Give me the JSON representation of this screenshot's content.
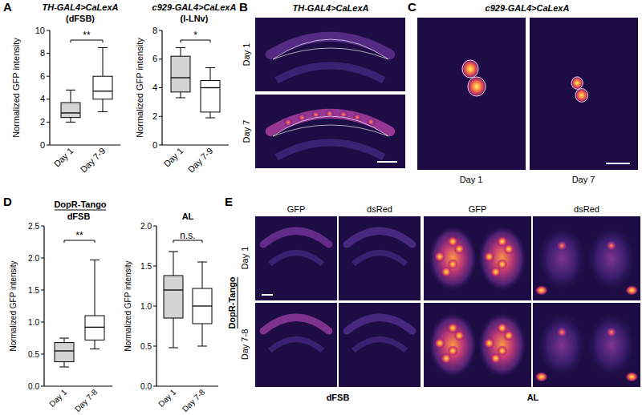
{
  "panel_labels": [
    "A",
    "B",
    "C",
    "D",
    "E"
  ],
  "chart_data": [
    {
      "type": "box",
      "title": "TH-GAL4>CaLexA",
      "subtitle": "(dFSB)",
      "y_label": "Normalized GFP intensity",
      "categories": [
        "Day 1",
        "Day 7-9"
      ],
      "boxes": [
        {
          "whisker_low": 2.0,
          "q1": 2.4,
          "median": 2.8,
          "q3": 3.7,
          "whisker_high": 4.8
        },
        {
          "whisker_low": 2.9,
          "q1": 4.0,
          "median": 4.7,
          "q3": 6.0,
          "whisker_high": 8.5
        }
      ],
      "colors": [
        "#d3d3d3",
        "#ffffff"
      ],
      "ylim": [
        0,
        10
      ],
      "yticks": [
        0,
        2,
        4,
        6,
        8,
        10
      ],
      "significance": "**"
    },
    {
      "type": "box",
      "title": "c929-GAL4>CaLexA",
      "subtitle": "(l-LNv)",
      "y_label": "Normalized GFP intensity",
      "categories": [
        "Day 1",
        "Day 7-9"
      ],
      "boxes": [
        {
          "whisker_low": 3.3,
          "q1": 3.7,
          "median": 4.7,
          "q3": 6.2,
          "whisker_high": 6.8
        },
        {
          "whisker_low": 1.9,
          "q1": 2.3,
          "median": 4.0,
          "q3": 4.5,
          "whisker_high": 5.4
        }
      ],
      "colors": [
        "#d3d3d3",
        "#ffffff"
      ],
      "ylim": [
        0,
        8
      ],
      "yticks": [
        0,
        2,
        4,
        6,
        8
      ],
      "significance": "*"
    },
    {
      "type": "box",
      "title": "dFSB",
      "y_label": "Normalized GFP intensity",
      "categories": [
        "Day 1",
        "Day 7-8"
      ],
      "boxes": [
        {
          "whisker_low": 0.3,
          "q1": 0.38,
          "median": 0.55,
          "q3": 0.68,
          "whisker_high": 0.75
        },
        {
          "whisker_low": 0.58,
          "q1": 0.72,
          "median": 0.92,
          "q3": 1.1,
          "whisker_high": 1.97
        }
      ],
      "colors": [
        "#d3d3d3",
        "#ffffff"
      ],
      "ylim": [
        0,
        2.5
      ],
      "yticks": [
        {
          "value": 0,
          "label": "0.0"
        },
        {
          "value": 0.5,
          "label": "0.5"
        },
        {
          "value": 1,
          "label": "1.0"
        },
        {
          "value": 1.5,
          "label": "1.5"
        },
        {
          "value": 2,
          "label": "2.0"
        },
        {
          "value": 2.5,
          "label": "2.5"
        }
      ],
      "significance": "**"
    },
    {
      "type": "box",
      "title": "AL",
      "y_label": "Normalized GFP intensity",
      "categories": [
        "Day 1",
        "Day 7-8"
      ],
      "boxes": [
        {
          "whisker_low": 0.48,
          "q1": 0.85,
          "median": 1.2,
          "q3": 1.38,
          "whisker_high": 1.68
        },
        {
          "whisker_low": 0.5,
          "q1": 0.78,
          "median": 1.0,
          "q3": 1.22,
          "whisker_high": 1.55
        }
      ],
      "colors": [
        "#d3d3d3",
        "#ffffff"
      ],
      "ylim": [
        0,
        2
      ],
      "yticks": [
        {
          "value": 0,
          "label": "0.0"
        },
        {
          "value": 0.5,
          "label": "0.5"
        },
        {
          "value": 1,
          "label": "1.0"
        },
        {
          "value": 1.5,
          "label": "1.5"
        },
        {
          "value": 2,
          "label": "2.0"
        }
      ],
      "significance": "n.s."
    }
  ],
  "panel_b": {
    "title": "TH-GAL4>CaLexA",
    "row_labels": [
      "Day 1",
      "Day 7"
    ]
  },
  "panel_c": {
    "title": "c929-GAL4>CaLexA",
    "column_labels": [
      "Day 1",
      "Day 7"
    ]
  },
  "panel_d": {
    "heading": "DopR-Tango"
  },
  "panel_e": {
    "side_label": "DopR-Tango",
    "row_labels": [
      "Day 1",
      "Day 7-8"
    ],
    "column_labels": [
      "GFP",
      "dsRed",
      "GFP",
      "dsRed"
    ],
    "region_labels": [
      "dFSB",
      "AL"
    ]
  }
}
